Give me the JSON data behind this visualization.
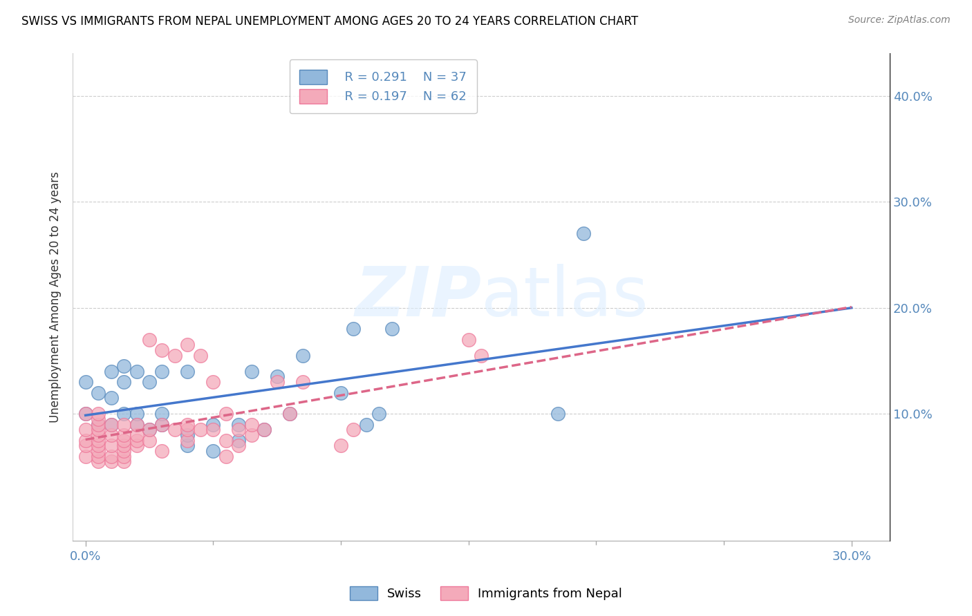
{
  "title": "SWISS VS IMMIGRANTS FROM NEPAL UNEMPLOYMENT AMONG AGES 20 TO 24 YEARS CORRELATION CHART",
  "source": "Source: ZipAtlas.com",
  "xlim": [
    -0.005,
    0.315
  ],
  "ylim": [
    -0.02,
    0.44
  ],
  "ylabel": "Unemployment Among Ages 20 to 24 years",
  "legend_swiss_r": "R = 0.291",
  "legend_swiss_n": "N = 37",
  "legend_nepal_r": "R = 0.197",
  "legend_nepal_n": "N = 62",
  "swiss_color": "#92B8DC",
  "nepal_color": "#F4AABA",
  "swiss_edge_color": "#5588BB",
  "nepal_edge_color": "#EE7799",
  "swiss_line_color": "#4477CC",
  "nepal_line_color": "#DD6688",
  "watermark_color": "#DDEEFF",
  "tick_color": "#5588BB",
  "ylabel_color": "#333333",
  "grid_color": "#CCCCCC",
  "swiss_x": [
    0.0,
    0.0,
    0.005,
    0.005,
    0.01,
    0.01,
    0.01,
    0.015,
    0.015,
    0.015,
    0.02,
    0.02,
    0.02,
    0.025,
    0.025,
    0.03,
    0.03,
    0.03,
    0.04,
    0.04,
    0.04,
    0.05,
    0.05,
    0.06,
    0.06,
    0.065,
    0.07,
    0.075,
    0.08,
    0.085,
    0.1,
    0.105,
    0.11,
    0.115,
    0.12,
    0.185,
    0.195
  ],
  "swiss_y": [
    0.1,
    0.13,
    0.09,
    0.12,
    0.09,
    0.115,
    0.14,
    0.1,
    0.13,
    0.145,
    0.09,
    0.1,
    0.14,
    0.085,
    0.13,
    0.09,
    0.1,
    0.14,
    0.07,
    0.08,
    0.14,
    0.065,
    0.09,
    0.075,
    0.09,
    0.14,
    0.085,
    0.135,
    0.1,
    0.155,
    0.12,
    0.18,
    0.09,
    0.1,
    0.18,
    0.1,
    0.27
  ],
  "nepal_x": [
    0.0,
    0.0,
    0.0,
    0.0,
    0.0,
    0.005,
    0.005,
    0.005,
    0.005,
    0.005,
    0.005,
    0.005,
    0.005,
    0.005,
    0.005,
    0.01,
    0.01,
    0.01,
    0.01,
    0.01,
    0.015,
    0.015,
    0.015,
    0.015,
    0.015,
    0.015,
    0.015,
    0.02,
    0.02,
    0.02,
    0.02,
    0.025,
    0.025,
    0.025,
    0.03,
    0.03,
    0.03,
    0.035,
    0.035,
    0.04,
    0.04,
    0.04,
    0.04,
    0.045,
    0.045,
    0.05,
    0.05,
    0.055,
    0.055,
    0.055,
    0.06,
    0.06,
    0.065,
    0.065,
    0.07,
    0.075,
    0.08,
    0.085,
    0.1,
    0.105,
    0.15,
    0.155
  ],
  "nepal_y": [
    0.06,
    0.07,
    0.075,
    0.085,
    0.1,
    0.055,
    0.06,
    0.065,
    0.07,
    0.075,
    0.08,
    0.085,
    0.09,
    0.095,
    0.1,
    0.055,
    0.06,
    0.07,
    0.08,
    0.09,
    0.055,
    0.06,
    0.065,
    0.07,
    0.075,
    0.08,
    0.09,
    0.07,
    0.075,
    0.08,
    0.09,
    0.075,
    0.085,
    0.17,
    0.065,
    0.09,
    0.16,
    0.085,
    0.155,
    0.075,
    0.085,
    0.09,
    0.165,
    0.085,
    0.155,
    0.085,
    0.13,
    0.06,
    0.075,
    0.1,
    0.07,
    0.085,
    0.08,
    0.09,
    0.085,
    0.13,
    0.1,
    0.13,
    0.07,
    0.085,
    0.17,
    0.155
  ]
}
